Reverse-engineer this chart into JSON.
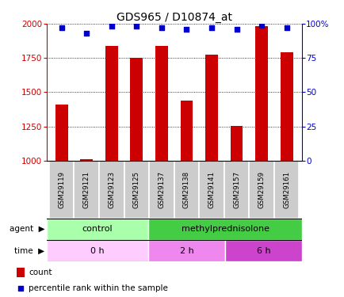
{
  "title": "GDS965 / D10874_at",
  "samples": [
    "GSM29119",
    "GSM29121",
    "GSM29123",
    "GSM29125",
    "GSM29137",
    "GSM29138",
    "GSM29141",
    "GSM29157",
    "GSM29159",
    "GSM29161"
  ],
  "counts": [
    1410,
    1010,
    1840,
    1750,
    1840,
    1440,
    1775,
    1255,
    1980,
    1790
  ],
  "percentiles": [
    97,
    93,
    98,
    98,
    97,
    96,
    97,
    96,
    99,
    97
  ],
  "ylim_left": [
    1000,
    2000
  ],
  "ylim_right": [
    0,
    100
  ],
  "yticks_left": [
    1000,
    1250,
    1500,
    1750,
    2000
  ],
  "yticks_right": [
    0,
    25,
    50,
    75,
    100
  ],
  "bar_color": "#cc0000",
  "dot_color": "#0000cc",
  "agent_labels": [
    {
      "label": "control",
      "start": 0,
      "end": 4,
      "color": "#aaffaa"
    },
    {
      "label": "methylprednisolone",
      "start": 4,
      "end": 10,
      "color": "#44cc44"
    }
  ],
  "time_labels": [
    {
      "label": "0 h",
      "start": 0,
      "end": 4,
      "color": "#ffccff"
    },
    {
      "label": "2 h",
      "start": 4,
      "end": 7,
      "color": "#ee88ee"
    },
    {
      "label": "6 h",
      "start": 7,
      "end": 10,
      "color": "#cc44cc"
    }
  ],
  "sample_box_color": "#cccccc",
  "sample_box_edge": "#ffffff",
  "legend_count_color": "#cc0000",
  "legend_dot_color": "#0000cc",
  "legend_count_label": "count",
  "legend_dot_label": "percentile rank within the sample"
}
